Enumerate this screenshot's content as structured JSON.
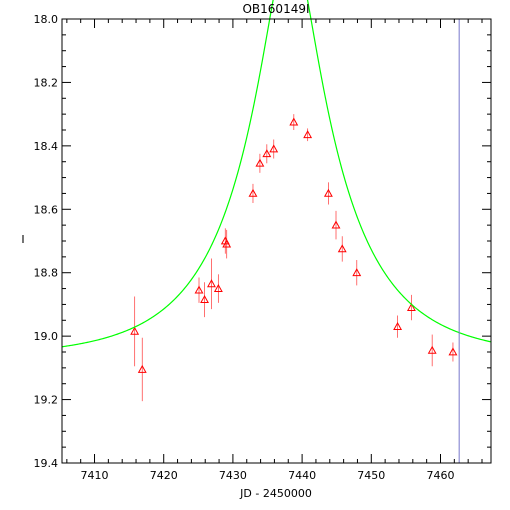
{
  "chart_data": {
    "type": "scatter",
    "title": "OB160149I",
    "xlabel": "JD - 2450000",
    "ylabel": "I",
    "xlim": [
      7405.3,
      7467.3
    ],
    "ylim": [
      19.4,
      18.0
    ],
    "y_inverted": true,
    "x_ticks": [
      "7410",
      "7420",
      "7430",
      "7440",
      "7450",
      "7460"
    ],
    "x_tick_values": [
      7410,
      7420,
      7430,
      7440,
      7450,
      7460
    ],
    "y_ticks": [
      "18.0",
      "18.2",
      "18.4",
      "18.6",
      "18.8",
      "19.0",
      "19.2",
      "19.4"
    ],
    "y_tick_values": [
      18.0,
      18.2,
      18.4,
      18.6,
      18.8,
      19.0,
      19.2,
      19.4
    ],
    "grid": false,
    "vertical_marker_x": 7462.7,
    "points": [
      {
        "x": 7415.8,
        "y": 18.985,
        "err": 0.11
      },
      {
        "x": 7416.9,
        "y": 19.105,
        "err": 0.1
      },
      {
        "x": 7425.1,
        "y": 18.855,
        "err": 0.04
      },
      {
        "x": 7425.9,
        "y": 18.885,
        "err": 0.055
      },
      {
        "x": 7426.9,
        "y": 18.835,
        "err": 0.08
      },
      {
        "x": 7427.9,
        "y": 18.85,
        "err": 0.045
      },
      {
        "x": 7428.9,
        "y": 18.7,
        "err": 0.04
      },
      {
        "x": 7429.1,
        "y": 18.71,
        "err": 0.045
      },
      {
        "x": 7432.9,
        "y": 18.55,
        "err": 0.03
      },
      {
        "x": 7433.9,
        "y": 18.455,
        "err": 0.03
      },
      {
        "x": 7434.9,
        "y": 18.425,
        "err": 0.03
      },
      {
        "x": 7435.9,
        "y": 18.41,
        "err": 0.03
      },
      {
        "x": 7438.8,
        "y": 18.325,
        "err": 0.025
      },
      {
        "x": 7440.8,
        "y": 18.365,
        "err": 0.02
      },
      {
        "x": 7443.8,
        "y": 18.55,
        "err": 0.035
      },
      {
        "x": 7444.9,
        "y": 18.65,
        "err": 0.045
      },
      {
        "x": 7445.8,
        "y": 18.725,
        "err": 0.04
      },
      {
        "x": 7447.9,
        "y": 18.8,
        "err": 0.04
      },
      {
        "x": 7453.8,
        "y": 18.97,
        "err": 0.035
      },
      {
        "x": 7455.8,
        "y": 18.91,
        "err": 0.04
      },
      {
        "x": 7458.8,
        "y": 19.045,
        "err": 0.05
      },
      {
        "x": 7461.8,
        "y": 19.05,
        "err": 0.03
      }
    ],
    "model_curve": {
      "t0": 7438.3,
      "i_base": 19.068,
      "u0": 0.24,
      "tE": 15.0,
      "blend_fraction": 0.72,
      "x_range": [
        7405.3,
        7467.3
      ]
    },
    "colors": {
      "axes": "#000000",
      "points": "#ff0000",
      "error_bars": "#ff0000",
      "model_curve": "#00ff00",
      "vertical_marker": "#7777cc"
    }
  }
}
